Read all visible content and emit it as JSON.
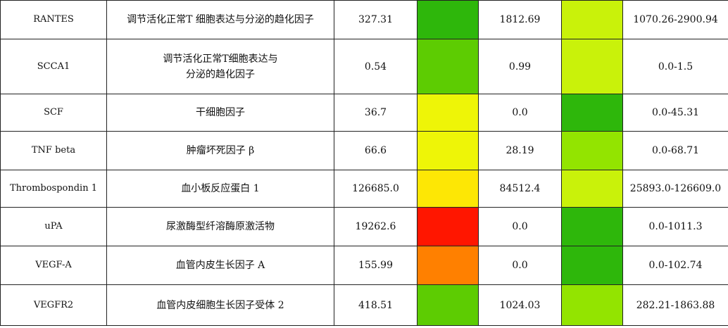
{
  "colors": {
    "dark_green": "#2eb70b",
    "green": "#5dcc02",
    "lime": "#93e400",
    "yellow_green": "#c9f20a",
    "yellow": "#eef507",
    "gold": "#fde705",
    "orange": "#ff8000",
    "red": "#ff1600"
  },
  "rows": [
    {
      "name": "RANTES",
      "desc": "调节活化正常T 细胞表达与分泌的趋化因子",
      "value1": "327.31",
      "color1": "#2eb70b",
      "value2": "1812.69",
      "color2": "#c9f20a",
      "range": "1070.26-2900.94"
    },
    {
      "name": "SCCA1",
      "desc": "调节活化正常T细胞表达与分泌的趋化因子",
      "value1": "0.54",
      "color1": "#5dcc02",
      "value2": "0.99",
      "color2": "#c9f20a",
      "range": "0.0-1.5"
    },
    {
      "name": "SCF",
      "desc": "干细胞因子",
      "value1": "36.7",
      "color1": "#eef507",
      "value2": "0.0",
      "color2": "#2eb70b",
      "range": "0.0-45.31"
    },
    {
      "name": "TNF beta",
      "desc": "肿瘤坏死因子 β",
      "value1": "66.6",
      "color1": "#eef507",
      "value2": "28.19",
      "color2": "#93e400",
      "range": "0.0-68.71"
    },
    {
      "name": "Thrombospondin 1",
      "desc": "血小板反应蛋白 1",
      "value1": "126685.0",
      "color1": "#fde705",
      "value2": "84512.4",
      "color2": "#c9f20a",
      "range": "25893.0-126609.0"
    },
    {
      "name": "uPA",
      "desc": "尿激酶型纤溶酶原激活物",
      "value1": "19262.6",
      "color1": "#ff1600",
      "value2": "0.0",
      "color2": "#2eb70b",
      "range": "0.0-1011.3"
    },
    {
      "name": "VEGF-A",
      "desc": "血管内皮生长因子 A",
      "value1": "155.99",
      "color1": "#ff8000",
      "value2": "0.0",
      "color2": "#2eb70b",
      "range": "0.0-102.74"
    },
    {
      "name": "VEGFR2",
      "desc": "血管内皮细胞生长因子受体 2",
      "value1": "418.51",
      "color1": "#5dcc02",
      "value2": "1024.03",
      "color2": "#93e400",
      "range": "282.21-1863.88"
    }
  ]
}
